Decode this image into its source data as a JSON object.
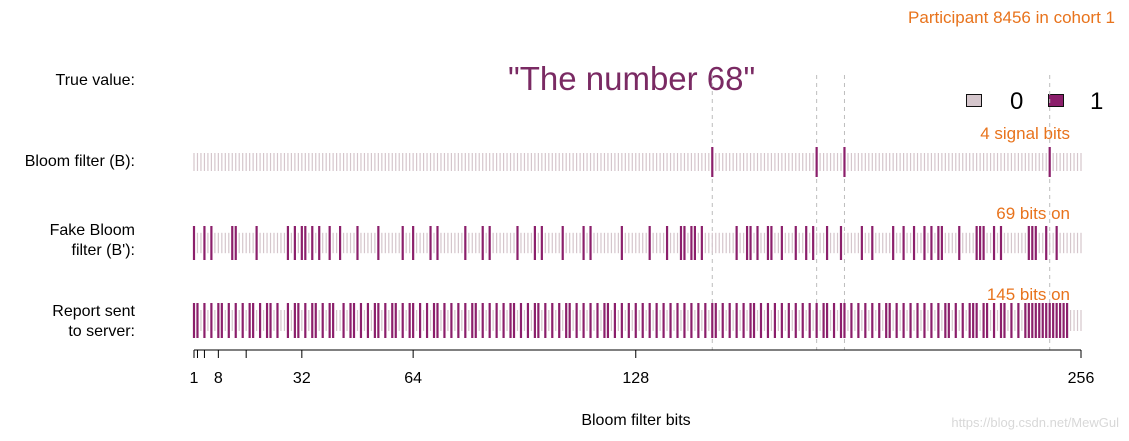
{
  "header": {
    "participant_label": "Participant 8456 in cohort 1"
  },
  "true_value": {
    "label": "True value:",
    "text": "\"The number 68\""
  },
  "legend": {
    "items": [
      {
        "label": "0",
        "color": "#d5c6cc"
      },
      {
        "label": "1",
        "color": "#8b1f6b"
      }
    ]
  },
  "rows": [
    {
      "id": "bloom",
      "label_lines": [
        "Bloom filter (B):"
      ],
      "stat": "4 signal bits"
    },
    {
      "id": "fake",
      "label_lines": [
        "Fake Bloom",
        "filter (B'):"
      ],
      "stat": "69 bits on"
    },
    {
      "id": "report",
      "label_lines": [
        "Report sent",
        "to server:"
      ],
      "stat": "145 bits on"
    }
  ],
  "chart_data": {
    "type": "heatmap",
    "n_bits": 256,
    "xlabel": "Bloom filter bits",
    "x_ticks": [
      1,
      8,
      32,
      64,
      128,
      256
    ],
    "x_minor_ticks": [
      2,
      4,
      16
    ],
    "signal_bits": [
      150,
      180,
      188,
      247
    ],
    "series": [
      {
        "name": "Bloom filter (B):",
        "ones": [
          150,
          180,
          188,
          247
        ]
      },
      {
        "name": "Fake Bloom filter (B'):",
        "ones": [
          1,
          4,
          6,
          12,
          13,
          19,
          28,
          30,
          32,
          33,
          35,
          37,
          40,
          43,
          48,
          54,
          61,
          64,
          69,
          71,
          79,
          84,
          86,
          94,
          99,
          101,
          107,
          113,
          115,
          124,
          132,
          137,
          141,
          142,
          144,
          145,
          147,
          157,
          160,
          161,
          163,
          166,
          167,
          170,
          174,
          177,
          179,
          183,
          187,
          193,
          196,
          202,
          205,
          208,
          211,
          213,
          215,
          216,
          221,
          226,
          227,
          228,
          231,
          233,
          241,
          242,
          243,
          246,
          249
        ]
      },
      {
        "name": "Report sent to server:",
        "ones": [
          1,
          2,
          4,
          6,
          8,
          9,
          11,
          13,
          15,
          17,
          18,
          20,
          22,
          23,
          25,
          28,
          30,
          31,
          33,
          35,
          36,
          38,
          40,
          41,
          44,
          46,
          47,
          49,
          51,
          53,
          54,
          56,
          58,
          59,
          61,
          63,
          64,
          66,
          68,
          70,
          71,
          73,
          75,
          77,
          79,
          81,
          82,
          84,
          86,
          88,
          90,
          92,
          93,
          95,
          97,
          99,
          100,
          102,
          104,
          106,
          108,
          109,
          111,
          113,
          115,
          117,
          119,
          120,
          122,
          124,
          126,
          128,
          130,
          132,
          134,
          136,
          138,
          140,
          142,
          144,
          146,
          148,
          150,
          151,
          153,
          155,
          157,
          159,
          161,
          162,
          164,
          166,
          168,
          170,
          172,
          174,
          176,
          178,
          180,
          182,
          183,
          185,
          187,
          188,
          190,
          192,
          194,
          196,
          198,
          200,
          201,
          203,
          205,
          207,
          209,
          211,
          213,
          215,
          217,
          218,
          220,
          222,
          224,
          225,
          226,
          228,
          229,
          231,
          233,
          234,
          236,
          238,
          240,
          241,
          242,
          243,
          244,
          245,
          246,
          247,
          248,
          249,
          250,
          251,
          252
        ]
      }
    ]
  },
  "watermark": "https://blog.csdn.net/MewGul",
  "colors": {
    "accent_orange": "#e8731c",
    "title_purple": "#7a2a63",
    "bit_on": "#8b1f6b",
    "bit_off": "#d5c6cc",
    "guide": "#bdbdbd"
  }
}
